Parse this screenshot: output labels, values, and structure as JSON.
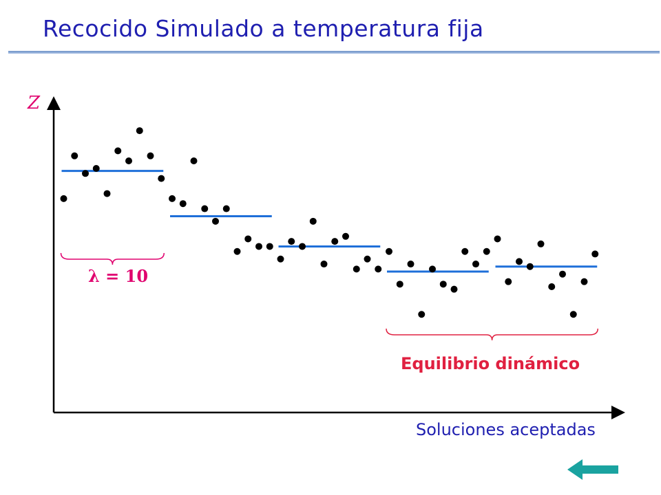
{
  "title": "Recocido Simulado a temperatura fija",
  "axis": {
    "y_label": "Z",
    "x_label": "Soluciones aceptadas"
  },
  "annotations": {
    "lambda": "λ = 10",
    "equilibrium": "Equilibrio dinámico"
  },
  "colors": {
    "title": "#1f1fb0",
    "segment": "#1e6fd9",
    "annotation": "#e0006e",
    "equilibrium": "#e02040",
    "arrow": "#1aa3a0",
    "points": "#000000"
  },
  "nav": {
    "back_icon": "left-arrow-icon"
  },
  "chart_data": {
    "type": "scatter",
    "points": [
      [
        1,
        4.25
      ],
      [
        2,
        5.1
      ],
      [
        3,
        4.75
      ],
      [
        4,
        4.85
      ],
      [
        5,
        4.35
      ],
      [
        6,
        5.2
      ],
      [
        7,
        5.0
      ],
      [
        8,
        5.6
      ],
      [
        9,
        5.1
      ],
      [
        10,
        4.65
      ],
      [
        11,
        4.25
      ],
      [
        12,
        4.15
      ],
      [
        13,
        5.0
      ],
      [
        14,
        4.05
      ],
      [
        15,
        3.8
      ],
      [
        16,
        4.05
      ],
      [
        17,
        3.2
      ],
      [
        18,
        3.45
      ],
      [
        19,
        3.3
      ],
      [
        20,
        3.3
      ],
      [
        21,
        3.05
      ],
      [
        22,
        3.4
      ],
      [
        23,
        3.3
      ],
      [
        24,
        3.8
      ],
      [
        25,
        2.95
      ],
      [
        26,
        3.4
      ],
      [
        27,
        3.5
      ],
      [
        28,
        2.85
      ],
      [
        29,
        3.05
      ],
      [
        30,
        2.85
      ],
      [
        31,
        3.2
      ],
      [
        32,
        2.55
      ],
      [
        33,
        2.95
      ],
      [
        34,
        1.95
      ],
      [
        35,
        2.85
      ],
      [
        36,
        2.55
      ],
      [
        37,
        2.45
      ],
      [
        38,
        3.2
      ],
      [
        39,
        2.95
      ],
      [
        40,
        3.2
      ],
      [
        41,
        3.45
      ],
      [
        42,
        2.6
      ],
      [
        43,
        3.0
      ],
      [
        44,
        2.9
      ],
      [
        45,
        3.35
      ],
      [
        46,
        2.5
      ],
      [
        47,
        2.75
      ],
      [
        48,
        1.95
      ],
      [
        49,
        2.6
      ],
      [
        50,
        3.15
      ]
    ],
    "segments": [
      {
        "from": 1,
        "to": 10,
        "y": 4.8
      },
      {
        "from": 11,
        "to": 20,
        "y": 3.9
      },
      {
        "from": 21,
        "to": 30,
        "y": 3.3
      },
      {
        "from": 31,
        "to": 40,
        "y": 2.8
      },
      {
        "from": 41,
        "to": 50,
        "y": 2.9
      }
    ],
    "brackets": [
      {
        "from": 1,
        "to": 10,
        "label": "λ = 10"
      },
      {
        "from": 31,
        "to": 50,
        "label": "Equilibrio dinámico"
      }
    ],
    "xlim": [
      0,
      51
    ],
    "ylim": [
      0,
      6.6
    ]
  }
}
